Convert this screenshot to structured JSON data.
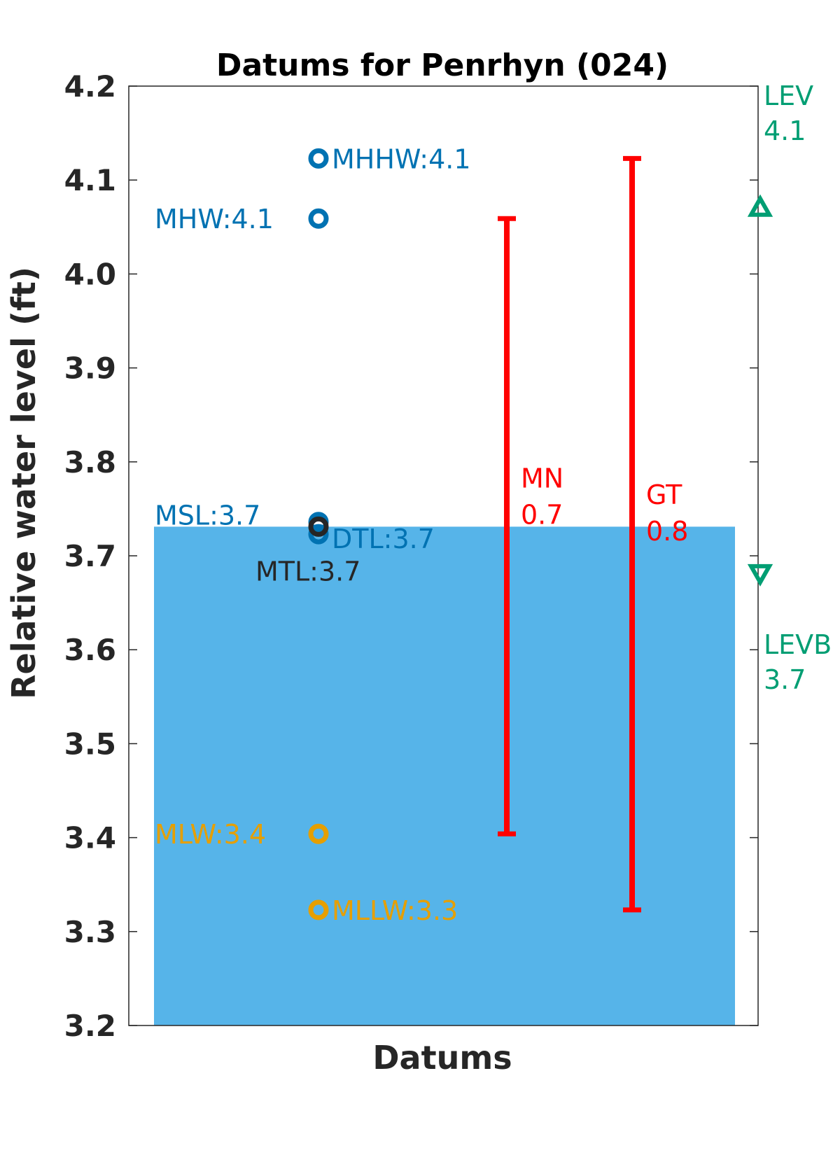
{
  "chart_data": {
    "type": "scatter",
    "title": "Datums for Penrhyn (024)",
    "xlabel": "Datums",
    "ylabel": "Relative water level (ft)",
    "ylim": [
      3.2,
      4.2
    ],
    "yticks": [
      "3.2",
      "3.3",
      "3.4",
      "3.5",
      "3.6",
      "3.7",
      "3.8",
      "3.9",
      "4.0",
      "4.1",
      "4.2"
    ],
    "background_level": 3.731,
    "colors": {
      "fill": "#56b4e9",
      "blue": "#0072b2",
      "orange": "#e69f00",
      "dark": "#262626",
      "red": "#ff0000",
      "green": "#009e73"
    },
    "datums": [
      {
        "name": "MHHW",
        "value": 4.123,
        "label": "MHHW:4.1",
        "color": "blue",
        "label_side": "right"
      },
      {
        "name": "MHW",
        "value": 4.059,
        "label": "MHW:4.1",
        "color": "blue",
        "label_side": "left"
      },
      {
        "name": "MSL",
        "value": 3.736,
        "label": "MSL:3.7",
        "color": "blue",
        "label_side": "left"
      },
      {
        "name": "DTL",
        "value": 3.723,
        "label": "DTL:3.7",
        "color": "blue",
        "label_side": "right"
      },
      {
        "name": "MTL",
        "value": 3.731,
        "label": "MTL:3.7",
        "color": "dark",
        "label_side": "below"
      },
      {
        "name": "MLW",
        "value": 3.404,
        "label": "MLW:3.4",
        "color": "orange",
        "label_side": "left"
      },
      {
        "name": "MLLW",
        "value": 3.323,
        "label": "MLLW:3.3",
        "color": "orange",
        "label_side": "right"
      }
    ],
    "ranges": [
      {
        "name": "MN",
        "low": 3.404,
        "high": 4.059,
        "value_label": "0.7"
      },
      {
        "name": "GT",
        "low": 3.323,
        "high": 4.123,
        "value_label": "0.8"
      }
    ],
    "levels": [
      {
        "name": "LEV",
        "value": 4.072,
        "value_label": "4.1",
        "marker": "triangle-up"
      },
      {
        "name": "LEVB",
        "value": 3.68,
        "value_label": "3.7",
        "marker": "triangle-down"
      }
    ]
  }
}
